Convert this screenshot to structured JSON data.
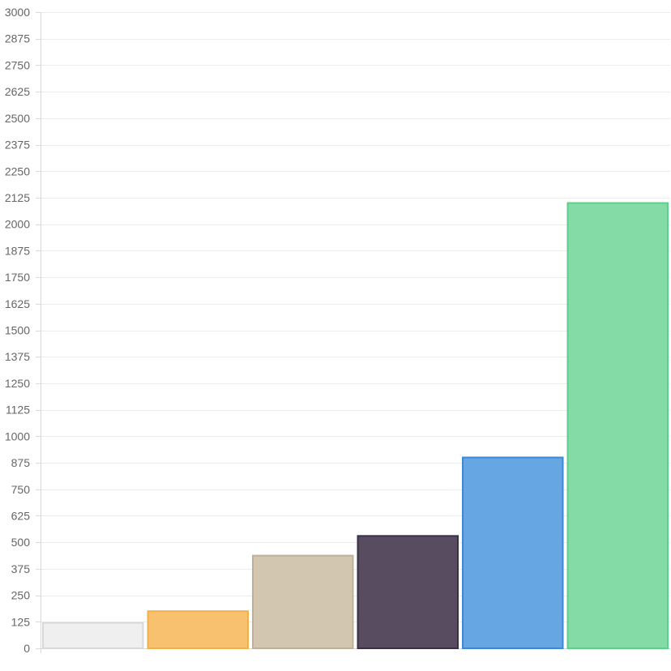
{
  "chart_data": {
    "type": "bar",
    "title": "",
    "xlabel": "",
    "ylabel": "",
    "ylim": [
      0,
      3000
    ],
    "y_ticks": [
      0,
      125,
      250,
      375,
      500,
      625,
      750,
      875,
      1000,
      1125,
      1250,
      1375,
      1500,
      1625,
      1750,
      1875,
      2000,
      2125,
      2250,
      2375,
      2500,
      2625,
      2750,
      2875,
      3000
    ],
    "grid": true,
    "legend": "none",
    "categories": [
      "",
      "",
      "",
      "",
      "",
      ""
    ],
    "values": [
      120,
      175,
      437,
      530,
      900,
      2100
    ],
    "colors": {
      "fill": [
        "#efefef",
        "#f8c170",
        "#d2c6b1",
        "#574c60",
        "#66a6e3",
        "#85dba6"
      ],
      "stroke": [
        "#d8d8d8",
        "#f1b04a",
        "#bfb097",
        "#3a3046",
        "#3d88d6",
        "#5cd08b"
      ]
    }
  }
}
